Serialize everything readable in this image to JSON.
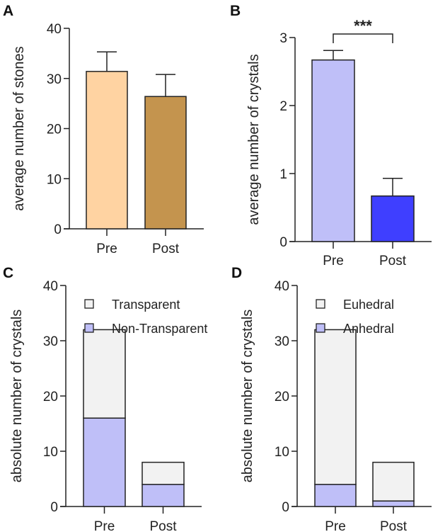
{
  "chart_data": [
    {
      "panel": "A",
      "type": "bar",
      "categories": [
        "Pre",
        "Post"
      ],
      "values": [
        31.4,
        26.4
      ],
      "error_upper": [
        35.3,
        30.8
      ],
      "colors": [
        "#FFD3A2",
        "#C4944E"
      ],
      "ylabel": "average number of stones",
      "ylim": [
        0,
        40
      ],
      "yticks": [
        0,
        10,
        20,
        30,
        40
      ],
      "grid": false
    },
    {
      "panel": "B",
      "type": "bar",
      "categories": [
        "Pre",
        "Post"
      ],
      "values": [
        2.67,
        0.67
      ],
      "error_upper": [
        2.81,
        0.93
      ],
      "colors": [
        "#BFBFF8",
        "#3F3FFF"
      ],
      "ylabel": "average number of crystals",
      "ylim": [
        0,
        3
      ],
      "yticks": [
        0,
        1,
        2,
        3
      ],
      "grid": false,
      "annotation": "***"
    },
    {
      "panel": "C",
      "type": "bar",
      "stacked": true,
      "categories": [
        "Pre",
        "Post"
      ],
      "series": [
        {
          "name": "Non-Transparent",
          "values": [
            16,
            4
          ],
          "color": "#BFBFF8"
        },
        {
          "name": "Transparent",
          "values": [
            16,
            4
          ],
          "color": "#F2F2F2"
        }
      ],
      "ylabel": "absolute number of crystals",
      "ylim": [
        0,
        40
      ],
      "yticks": [
        0,
        10,
        20,
        30,
        40
      ],
      "grid": false,
      "legend_position": "top-right"
    },
    {
      "panel": "D",
      "type": "bar",
      "stacked": true,
      "categories": [
        "Pre",
        "Post"
      ],
      "series": [
        {
          "name": "Anhedral",
          "values": [
            4,
            1
          ],
          "color": "#BFBFF8"
        },
        {
          "name": "Euhedral",
          "values": [
            28,
            7
          ],
          "color": "#F2F2F2"
        }
      ],
      "ylabel": "absolute number of crystals",
      "ylim": [
        0,
        40
      ],
      "yticks": [
        0,
        10,
        20,
        30,
        40
      ],
      "grid": false,
      "legend_position": "top-right"
    }
  ]
}
